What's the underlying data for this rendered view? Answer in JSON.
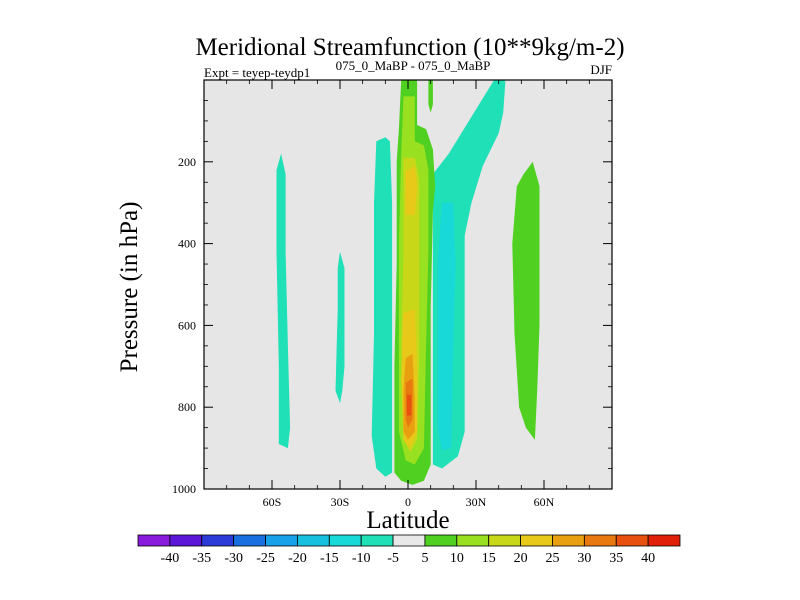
{
  "chart_data": {
    "type": "heatmap",
    "title": "Meridional Streamfunction (10**9kg/m-2)",
    "subtitle_left": "Expt = teyep-teydp1",
    "subtitle_center": "075_0_MaBP - 075_0_MaBP",
    "subtitle_right": "DJF",
    "xlabel": "Latitude",
    "ylabel": "Pressure (in hPa)",
    "xlim": [
      -90,
      90
    ],
    "ylim": [
      1000,
      0
    ],
    "x_ticks": [
      -60,
      -30,
      0,
      30,
      60
    ],
    "x_tick_labels": [
      "60S",
      "30S",
      "0",
      "30N",
      "60N"
    ],
    "y_ticks": [
      200,
      400,
      600,
      800,
      1000
    ],
    "y_tick_labels": [
      "200",
      "400",
      "600",
      "800",
      "1000"
    ],
    "colorbar": {
      "labels": [
        "-40",
        "-35",
        "-30",
        "-25",
        "-20",
        "-15",
        "-10",
        "-5",
        "5",
        "10",
        "15",
        "20",
        "25",
        "30",
        "35",
        "40"
      ],
      "colors": [
        "#8a1adc",
        "#5b16d8",
        "#2b3bd8",
        "#1a6fe0",
        "#18a0e8",
        "#18c0e0",
        "#18d8d8",
        "#20e0b8",
        "#e8e8e8",
        "#50d020",
        "#98e020",
        "#c8d818",
        "#e8c818",
        "#e8a010",
        "#e87810",
        "#e85010",
        "#e02008"
      ]
    },
    "contours": [
      {
        "name": "sh-polar-negative",
        "level": -10,
        "color": "#20e0b8",
        "points": [
          [
            -56,
            180
          ],
          [
            -54,
            230
          ],
          [
            -54,
            420
          ],
          [
            -53,
            650
          ],
          [
            -52,
            850
          ],
          [
            -53,
            900
          ],
          [
            -57,
            890
          ],
          [
            -57,
            700
          ],
          [
            -58,
            420
          ],
          [
            -58,
            220
          ]
        ]
      },
      {
        "name": "sh-subtropical-negative",
        "level": -10,
        "color": "#20e0b8",
        "points": [
          [
            -30,
            420
          ],
          [
            -28,
            460
          ],
          [
            -28,
            700
          ],
          [
            -29,
            760
          ],
          [
            -30,
            790
          ],
          [
            -32,
            760
          ],
          [
            -31,
            560
          ],
          [
            -31,
            460
          ]
        ]
      },
      {
        "name": "sh-tropical-negative",
        "level": -10,
        "color": "#20e0b8",
        "points": [
          [
            -14,
            150
          ],
          [
            -10,
            140
          ],
          [
            -8,
            150
          ],
          [
            -7,
            300
          ],
          [
            -7,
            960
          ],
          [
            -10,
            970
          ],
          [
            -14,
            950
          ],
          [
            -16,
            870
          ],
          [
            -15,
            620
          ],
          [
            -15,
            300
          ]
        ]
      },
      {
        "name": "nh-tropical-negative",
        "level": -10,
        "color": "#20e0b8",
        "points": [
          [
            38,
            0
          ],
          [
            43,
            0
          ],
          [
            42,
            80
          ],
          [
            40,
            130
          ],
          [
            33,
            210
          ],
          [
            28,
            300
          ],
          [
            25,
            380
          ],
          [
            25,
            860
          ],
          [
            22,
            920
          ],
          [
            15,
            950
          ],
          [
            11,
            940
          ],
          [
            11,
            230
          ],
          [
            18,
            180
          ]
        ]
      },
      {
        "name": "nh-tropical-negative-inner",
        "level": -15,
        "color": "#18d8d8",
        "points": [
          [
            15,
            300
          ],
          [
            20,
            300
          ],
          [
            21,
            450
          ],
          [
            20,
            650
          ],
          [
            19,
            900
          ],
          [
            15,
            905
          ],
          [
            13,
            850
          ],
          [
            13,
            450
          ]
        ]
      },
      {
        "name": "nh-midlatitude-positive",
        "level": 10,
        "color": "#50d020",
        "points": [
          [
            55,
            200
          ],
          [
            58,
            260
          ],
          [
            58,
            600
          ],
          [
            57,
            760
          ],
          [
            56,
            880
          ],
          [
            52,
            850
          ],
          [
            49,
            800
          ],
          [
            47,
            620
          ],
          [
            46,
            400
          ],
          [
            48,
            260
          ],
          [
            51,
            230
          ]
        ]
      },
      {
        "name": "equatorial-positive-10",
        "level": 10,
        "color": "#50d020",
        "points": [
          [
            -3,
            0
          ],
          [
            4,
            0
          ],
          [
            4,
            110
          ],
          [
            8,
            120
          ],
          [
            11,
            170
          ],
          [
            12,
            260
          ],
          [
            11,
            320
          ],
          [
            10,
            560
          ],
          [
            10,
            940
          ],
          [
            7,
            980
          ],
          [
            2,
            990
          ],
          [
            -3,
            980
          ],
          [
            -6,
            960
          ],
          [
            -6,
            700
          ],
          [
            -5,
            450
          ],
          [
            -5,
            200
          ],
          [
            -4,
            120
          ]
        ]
      },
      {
        "name": "equatorial-positive-north-upper",
        "level": 10,
        "color": "#50d020",
        "points": [
          [
            9,
            0
          ],
          [
            11,
            0
          ],
          [
            11,
            60
          ],
          [
            10,
            80
          ],
          [
            9,
            60
          ]
        ]
      },
      {
        "name": "equatorial-positive-15",
        "level": 15,
        "color": "#98e020",
        "points": [
          [
            -2,
            40
          ],
          [
            3,
            40
          ],
          [
            3,
            150
          ],
          [
            7,
            160
          ],
          [
            9,
            220
          ],
          [
            9,
            420
          ],
          [
            8,
            650
          ],
          [
            7,
            900
          ],
          [
            3,
            940
          ],
          [
            -1,
            930
          ],
          [
            -4,
            860
          ],
          [
            -4,
            400
          ],
          [
            -3,
            180
          ]
        ]
      },
      {
        "name": "equatorial-positive-20",
        "level": 20,
        "color": "#c8d818",
        "points": [
          [
            -2,
            190
          ],
          [
            3,
            190
          ],
          [
            5,
            240
          ],
          [
            5,
            500
          ],
          [
            5,
            680
          ],
          [
            4,
            880
          ],
          [
            1,
            910
          ],
          [
            -2,
            880
          ],
          [
            -3,
            650
          ],
          [
            -2,
            420
          ]
        ]
      },
      {
        "name": "equatorial-positive-25",
        "level": 25,
        "color": "#e8c818",
        "points": [
          [
            -1,
            225
          ],
          [
            3,
            210
          ],
          [
            4,
            260
          ],
          [
            3,
            330
          ],
          [
            -1,
            330
          ]
        ]
      },
      {
        "name": "equatorial-positive-25-lower",
        "level": 25,
        "color": "#e8c818",
        "points": [
          [
            -2,
            570
          ],
          [
            3,
            560
          ],
          [
            4,
            700
          ],
          [
            4,
            860
          ],
          [
            1,
            900
          ],
          [
            -2,
            880
          ],
          [
            -3,
            730
          ]
        ]
      },
      {
        "name": "equatorial-positive-30",
        "level": 30,
        "color": "#e8a010",
        "points": [
          [
            -1,
            680
          ],
          [
            2,
            670
          ],
          [
            3,
            780
          ],
          [
            3,
            860
          ],
          [
            0,
            880
          ],
          [
            -2,
            860
          ],
          [
            -2,
            760
          ]
        ]
      },
      {
        "name": "equatorial-positive-35",
        "level": 35,
        "color": "#e87810",
        "points": [
          [
            -1,
            740
          ],
          [
            2,
            730
          ],
          [
            2,
            830
          ],
          [
            0,
            850
          ],
          [
            -1,
            830
          ]
        ]
      },
      {
        "name": "equatorial-positive-40",
        "level": 40,
        "color": "#e85010",
        "points": [
          [
            -0.5,
            770
          ],
          [
            1.5,
            770
          ],
          [
            1.5,
            820
          ],
          [
            -0.5,
            820
          ]
        ]
      }
    ]
  }
}
